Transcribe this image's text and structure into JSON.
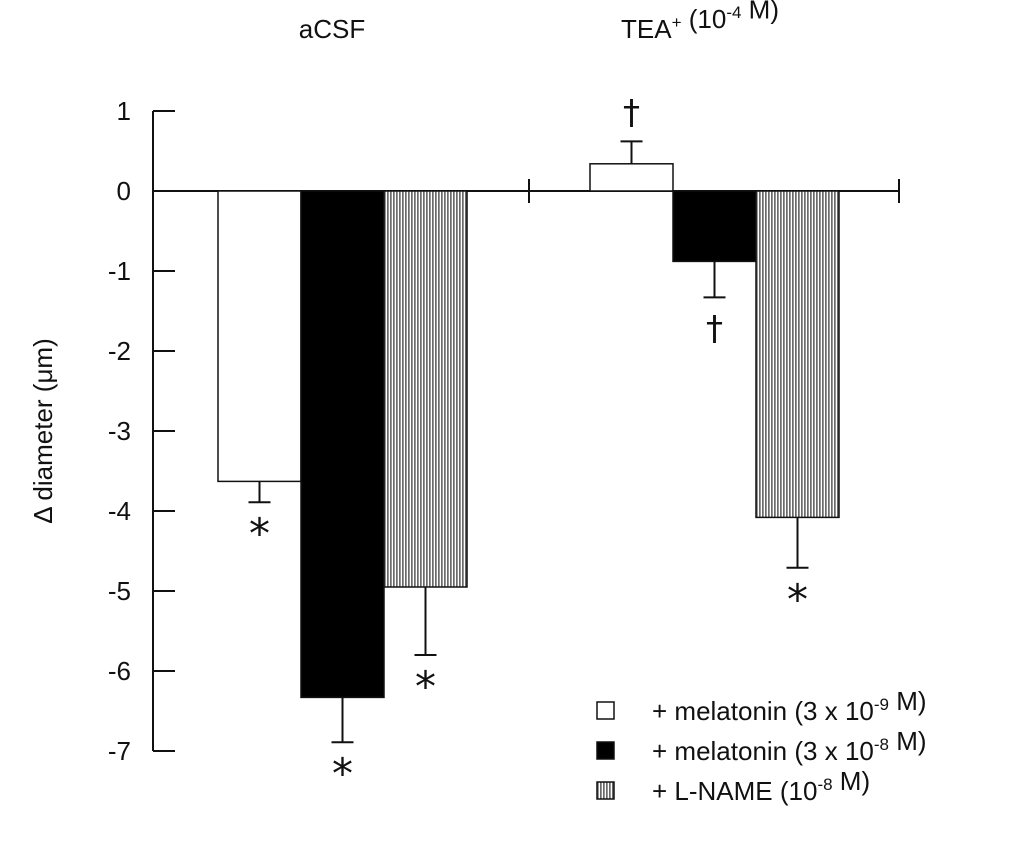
{
  "chart_data": {
    "type": "bar",
    "ylabel": "Δ diameter (μm)",
    "ylim": [
      -7,
      1
    ],
    "y_ticks": [
      "1",
      "0",
      "-1",
      "-2",
      "-3",
      "-4",
      "-5",
      "-6",
      "-7"
    ],
    "groups": [
      {
        "label": "aCSF",
        "bars": [
          {
            "series": "+ melatonin (3 x 10-9 M)",
            "value": -3.63,
            "error": 0.26,
            "marker": "*"
          },
          {
            "series": "+ melatonin (3 x 10-8 M)",
            "value": -6.33,
            "error": 0.56,
            "marker": "*"
          },
          {
            "series": "+ L-NAME (10-8 M)",
            "value": -4.95,
            "error": 0.85,
            "marker": "*"
          }
        ]
      },
      {
        "label": "TEA+ (10-4 M)",
        "bars": [
          {
            "series": "+ melatonin (3 x 10-9 M)",
            "value": 0.34,
            "error": 0.28,
            "marker": "†"
          },
          {
            "series": "+ melatonin (3 x 10-8 M)",
            "value": -0.88,
            "error": 0.45,
            "marker": "†"
          },
          {
            "series": "+ L-NAME (10-8 M)",
            "value": -4.08,
            "error": 0.63,
            "marker": "*"
          }
        ]
      }
    ],
    "legend": {
      "placement": "bottom-right",
      "entries": [
        {
          "label": "+ melatonin (3 x 10-9 M)",
          "fill": "white"
        },
        {
          "label": "+ melatonin (3 x 10-8 M)",
          "fill": "black"
        },
        {
          "label": "+ L-NAME (10-8 M)",
          "fill": "vertical-stripes"
        }
      ]
    }
  }
}
